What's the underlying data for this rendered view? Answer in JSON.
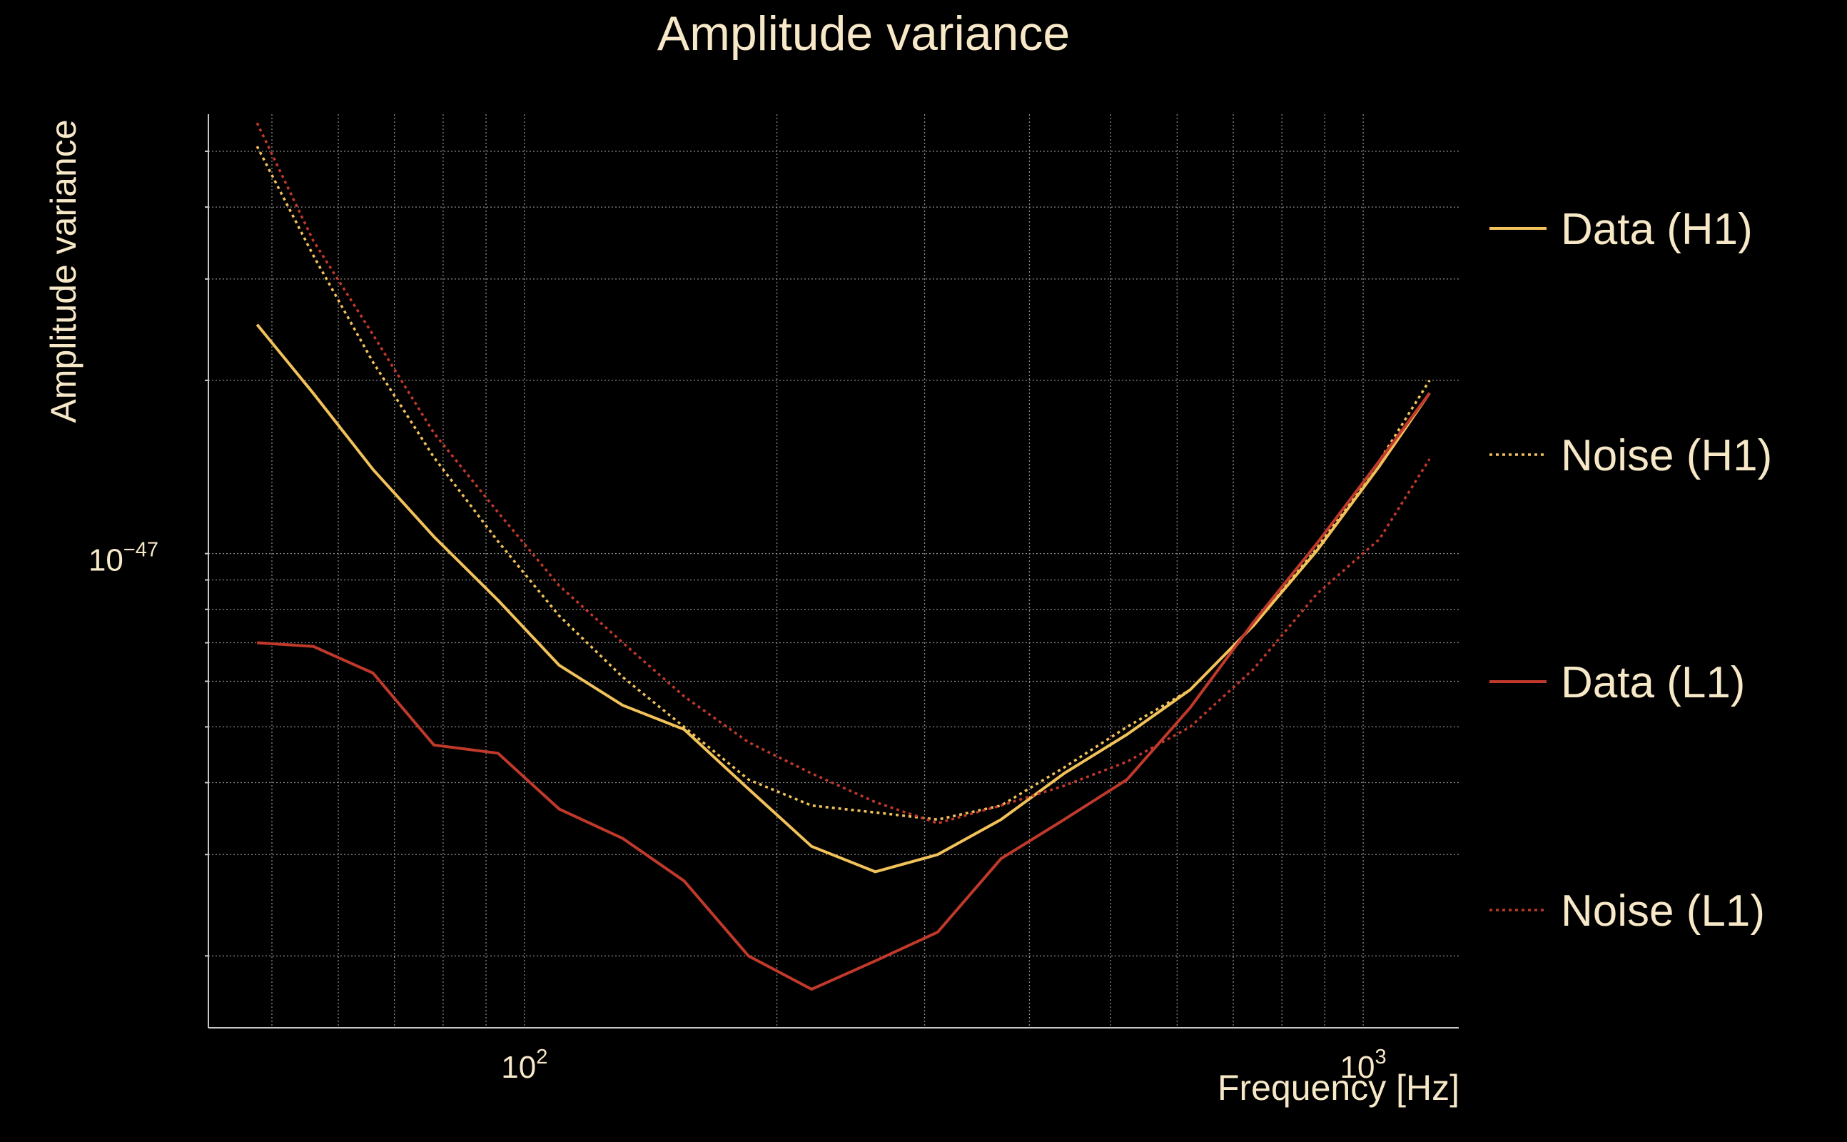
{
  "colors": {
    "background": "#000000",
    "text": "#f7e8c8",
    "grid": "#8a8a8a",
    "axis": "#c8c8c8",
    "h1": "#f2c25a",
    "l1": "#c0392b"
  },
  "chart_data": {
    "type": "line",
    "title": "Amplitude variance",
    "xlabel": "Frequency [Hz]",
    "ylabel": "Amplitude variance",
    "xscale": "log",
    "yscale": "log",
    "xlim": [
      42,
      1300
    ],
    "ylim": [
      1.5e-48,
      5.8e-47
    ],
    "grid": true,
    "legend_position": "right",
    "x_tick_labels": [
      {
        "value": 100,
        "base": "10",
        "exp": "2"
      },
      {
        "value": 1000,
        "base": "10",
        "exp": "3"
      }
    ],
    "y_tick_labels": [
      {
        "value": 1e-47,
        "base": "10",
        "exp": "−47"
      }
    ],
    "x": [
      48,
      56,
      66,
      78,
      93,
      110,
      131,
      155,
      185,
      220,
      262,
      311,
      370,
      440,
      523,
      622,
      740,
      880,
      1046,
      1200
    ],
    "series": [
      {
        "name": "Data (H1)",
        "style": "solid",
        "color": "#f2c25a",
        "values": [
          2.5e-47,
          1.9e-47,
          1.4e-47,
          1.07e-47,
          8.3e-48,
          6.4e-48,
          5.45e-48,
          4.95e-48,
          3.9e-48,
          3.1e-48,
          2.8e-48,
          3e-48,
          3.45e-48,
          4.15e-48,
          4.85e-48,
          5.8e-48,
          7.5e-48,
          1.01e-47,
          1.42e-47,
          1.9e-47
        ]
      },
      {
        "name": "Noise (H1)",
        "style": "dotted",
        "color": "#f2c25a",
        "values": [
          5.1e-47,
          3.3e-47,
          2.15e-47,
          1.47e-47,
          1.05e-47,
          7.8e-48,
          6.1e-48,
          5e-48,
          4.05e-48,
          3.65e-48,
          3.55e-48,
          3.45e-48,
          3.65e-48,
          4.25e-48,
          5e-48,
          5.8e-48,
          7.5e-48,
          1.02e-47,
          1.45e-47,
          2e-47
        ]
      },
      {
        "name": "Data (L1)",
        "style": "solid",
        "color": "#c0392b",
        "values": [
          7e-48,
          6.9e-48,
          6.2e-48,
          4.65e-48,
          4.5e-48,
          3.6e-48,
          3.2e-48,
          2.7e-48,
          2e-48,
          1.75e-48,
          1.96e-48,
          2.2e-48,
          2.95e-48,
          3.45e-48,
          4.05e-48,
          5.4e-48,
          7.6e-48,
          1.04e-47,
          1.45e-47,
          1.9e-47
        ]
      },
      {
        "name": "Noise (L1)",
        "style": "dotted",
        "color": "#c0392b",
        "values": [
          5.6e-47,
          3.5e-47,
          2.4e-47,
          1.62e-47,
          1.18e-47,
          8.8e-48,
          7e-48,
          5.65e-48,
          4.7e-48,
          4.15e-48,
          3.7e-48,
          3.4e-48,
          3.65e-48,
          3.95e-48,
          4.35e-48,
          5e-48,
          6.3e-48,
          8.5e-48,
          1.06e-47,
          1.46e-47
        ]
      }
    ]
  }
}
